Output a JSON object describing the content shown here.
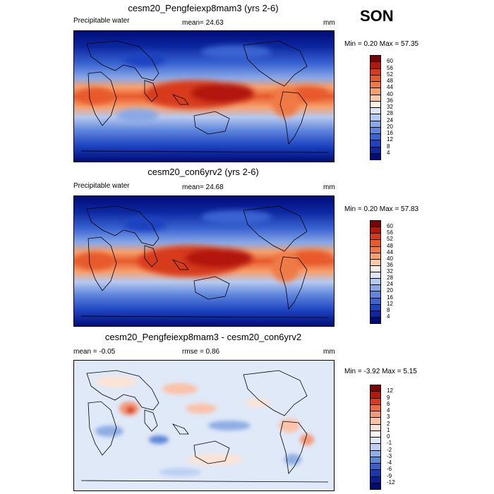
{
  "season": "SON",
  "panels": [
    {
      "title": "cesm20_Pengfeiexp8mam3 (yrs 2-6)",
      "left_label": "Precipitable water",
      "center_label": "mean=  24.63",
      "units": "mm",
      "stats": "Min =   0.20 Max =  57.35",
      "colorbar": {
        "levels": [
          "60",
          "56",
          "52",
          "48",
          "44",
          "40",
          "36",
          "32",
          "28",
          "24",
          "20",
          "16",
          "12",
          "8",
          "4"
        ],
        "colors": [
          "#7a0403",
          "#b2180e",
          "#d73a1c",
          "#e85a2c",
          "#f07a45",
          "#f6a06c",
          "#fbc9a5",
          "#fdf0e6",
          "#dde6f8",
          "#b6c9f0",
          "#8aa8e6",
          "#5f86dc",
          "#3a64d2",
          "#1d43c0",
          "#0c27a0",
          "#000c78"
        ]
      }
    },
    {
      "title": "cesm20_con6yrv2 (yrs 2-6)",
      "left_label": "Precipitable water",
      "center_label": "mean=  24.68",
      "units": "mm",
      "stats": "Min =   0.20 Max =  57.83",
      "colorbar": {
        "levels": [
          "60",
          "56",
          "52",
          "48",
          "44",
          "40",
          "36",
          "32",
          "28",
          "24",
          "20",
          "16",
          "12",
          "8",
          "4"
        ],
        "colors": [
          "#7a0403",
          "#b2180e",
          "#d73a1c",
          "#e85a2c",
          "#f07a45",
          "#f6a06c",
          "#fbc9a5",
          "#fdf0e6",
          "#dde6f8",
          "#b6c9f0",
          "#8aa8e6",
          "#5f86dc",
          "#3a64d2",
          "#1d43c0",
          "#0c27a0",
          "#000c78"
        ]
      }
    },
    {
      "title": "cesm20_Pengfeiexp8mam3 - cesm20_con6yrv2",
      "left_label": "mean =  -0.05",
      "center_label": "rmse =   0.86",
      "units": "mm",
      "stats": "Min =  -3.92 Max =   5.15",
      "colorbar": {
        "levels": [
          "12",
          "9",
          "6",
          "4",
          "3",
          "2",
          "1",
          "0",
          "-1",
          "-2",
          "-3",
          "-4",
          "-6",
          "-9",
          "-12"
        ],
        "colors": [
          "#7a0403",
          "#b2180e",
          "#d73a1c",
          "#ec6a45",
          "#f59878",
          "#fbc2a8",
          "#fde3d6",
          "#fbf3ef",
          "#dfe9f8",
          "#bdd0f2",
          "#8faee6",
          "#6187d9",
          "#3a5fcb",
          "#1a37b0",
          "#0a1e92",
          "#000c70"
        ]
      }
    }
  ]
}
